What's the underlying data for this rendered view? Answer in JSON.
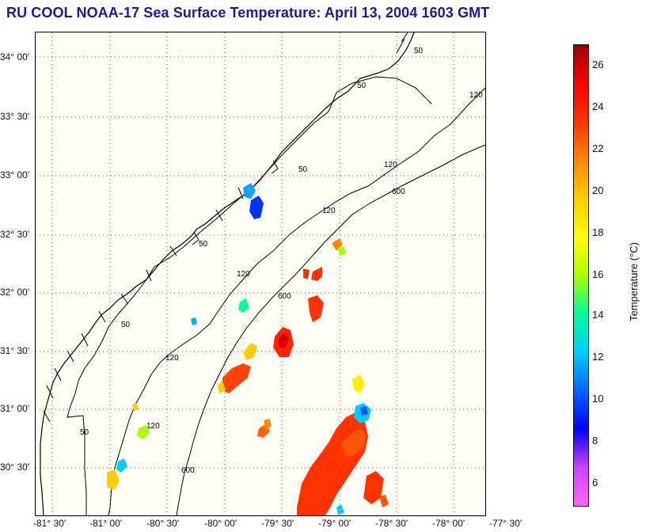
{
  "title": "RU COOL  NOAA-17  Sea Surface Temperature:  April 13, 2004 1603 GMT",
  "map": {
    "lat_labels": [
      {
        "text": "34° 00'"
      },
      {
        "text": "33° 30'"
      },
      {
        "text": "33° 00'"
      },
      {
        "text": "32° 30'"
      },
      {
        "text": "32° 00'"
      },
      {
        "text": "31° 30'"
      },
      {
        "text": "31° 00'"
      },
      {
        "text": "30° 30'"
      }
    ],
    "lon_labels": [
      {
        "text": "-81° 30'"
      },
      {
        "text": "-81° 00'"
      },
      {
        "text": "-80° 30'"
      },
      {
        "text": "-80° 00'"
      },
      {
        "text": "-79° 30'"
      },
      {
        "text": "-79° 00'"
      },
      {
        "text": "-78° 30'"
      },
      {
        "text": "-78° 00'"
      },
      {
        "text": "-77° 30'"
      }
    ],
    "isobath_labels": [
      {
        "text": "50"
      },
      {
        "text": "50"
      },
      {
        "text": "50"
      },
      {
        "text": "50"
      },
      {
        "text": "50"
      },
      {
        "text": "50"
      },
      {
        "text": "120"
      },
      {
        "text": "120"
      },
      {
        "text": "120"
      },
      {
        "text": "120"
      },
      {
        "text": "120"
      },
      {
        "text": "120"
      },
      {
        "text": "600"
      },
      {
        "text": "600"
      },
      {
        "text": "600"
      }
    ]
  },
  "colorbar": {
    "label": "Temperature (°C)",
    "range": [
      5,
      27
    ],
    "ticks": [
      "26",
      "24",
      "22",
      "20",
      "18",
      "16",
      "14",
      "12",
      "10",
      "8",
      "6"
    ],
    "colors": [
      "#ff66ff",
      "#cc44ff",
      "#0000ff",
      "#0066ff",
      "#00ccff",
      "#00ff99",
      "#aaff00",
      "#ffff00",
      "#ffcc00",
      "#ff8800",
      "#ff3300",
      "#ff0000",
      "#990000"
    ]
  }
}
